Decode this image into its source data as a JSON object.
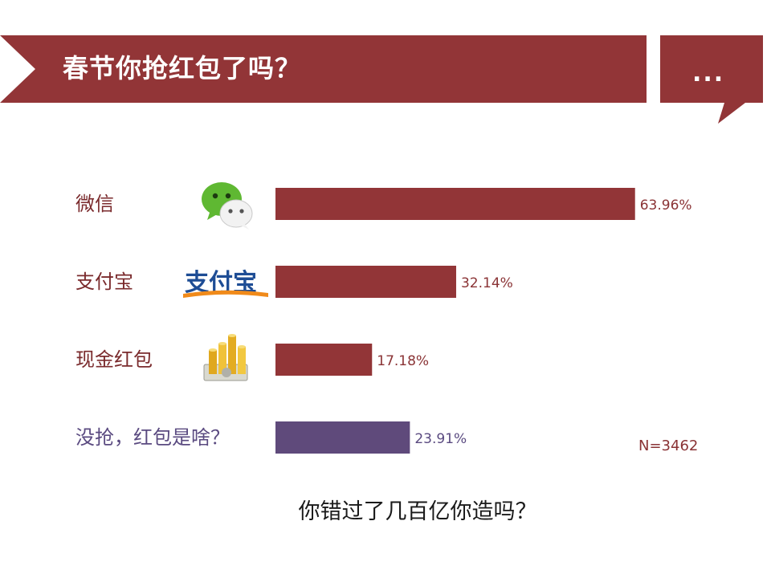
{
  "header": {
    "title": "春节你抢红包了吗？",
    "bubble_text": "...",
    "colors": {
      "ribbon": "#923537",
      "text": "#ffffff"
    }
  },
  "chart_data": {
    "type": "bar",
    "orientation": "horizontal",
    "categories": [
      "微信",
      "支付宝",
      "现金红包",
      "没抢，红包是啥？"
    ],
    "values": [
      63.96,
      32.14,
      17.18,
      23.91
    ],
    "value_labels": [
      "63.96%",
      "32.14%",
      "17.18%",
      "23.91%"
    ],
    "icons": [
      "wechat-icon",
      "alipay-icon",
      "gold-coins-icon",
      ""
    ],
    "bar_colors": [
      "#923537",
      "#923537",
      "#923537",
      "#5f4a7b"
    ],
    "unit": "%",
    "xlim": [
      0,
      64
    ],
    "grid": false,
    "legend": "none",
    "annotation": "N=3462"
  },
  "footer": {
    "question": "你错过了几百亿你造吗？"
  }
}
